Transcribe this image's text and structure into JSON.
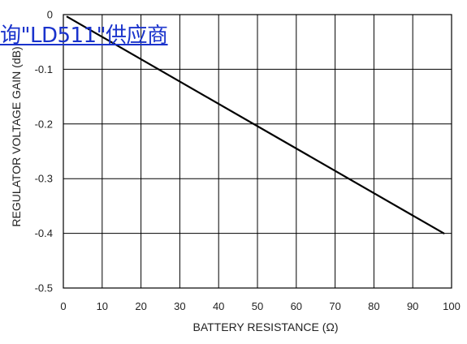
{
  "overlay_link": {
    "text": "询\"LD511\"供应商",
    "color": "#1a33cc"
  },
  "chart_data": {
    "type": "line",
    "title": "",
    "xlabel": "BATTERY RESISTANCE (Ω)",
    "ylabel": "REGULATOR VOLTAGE GAIN (dB)",
    "xlim": [
      0,
      100
    ],
    "ylim": [
      -0.5,
      0
    ],
    "x_ticks": [
      0,
      10,
      20,
      30,
      40,
      50,
      60,
      70,
      80,
      90,
      100
    ],
    "x_tick_labels": [
      "0",
      "10",
      "20",
      "30",
      "40",
      "50",
      "60",
      "70",
      "80",
      "90",
      "100"
    ],
    "y_ticks": [
      0,
      -0.1,
      -0.2,
      -0.3,
      -0.4,
      -0.5
    ],
    "y_tick_labels": [
      "0",
      "-0.1",
      "-0.2",
      "-0.3",
      "-0.4",
      "-0.5"
    ],
    "grid": true,
    "line_color": "#000000",
    "grid_color": "#000000",
    "series": [
      {
        "x": [
          1,
          98
        ],
        "y": [
          -0.004,
          -0.4
        ]
      }
    ]
  }
}
